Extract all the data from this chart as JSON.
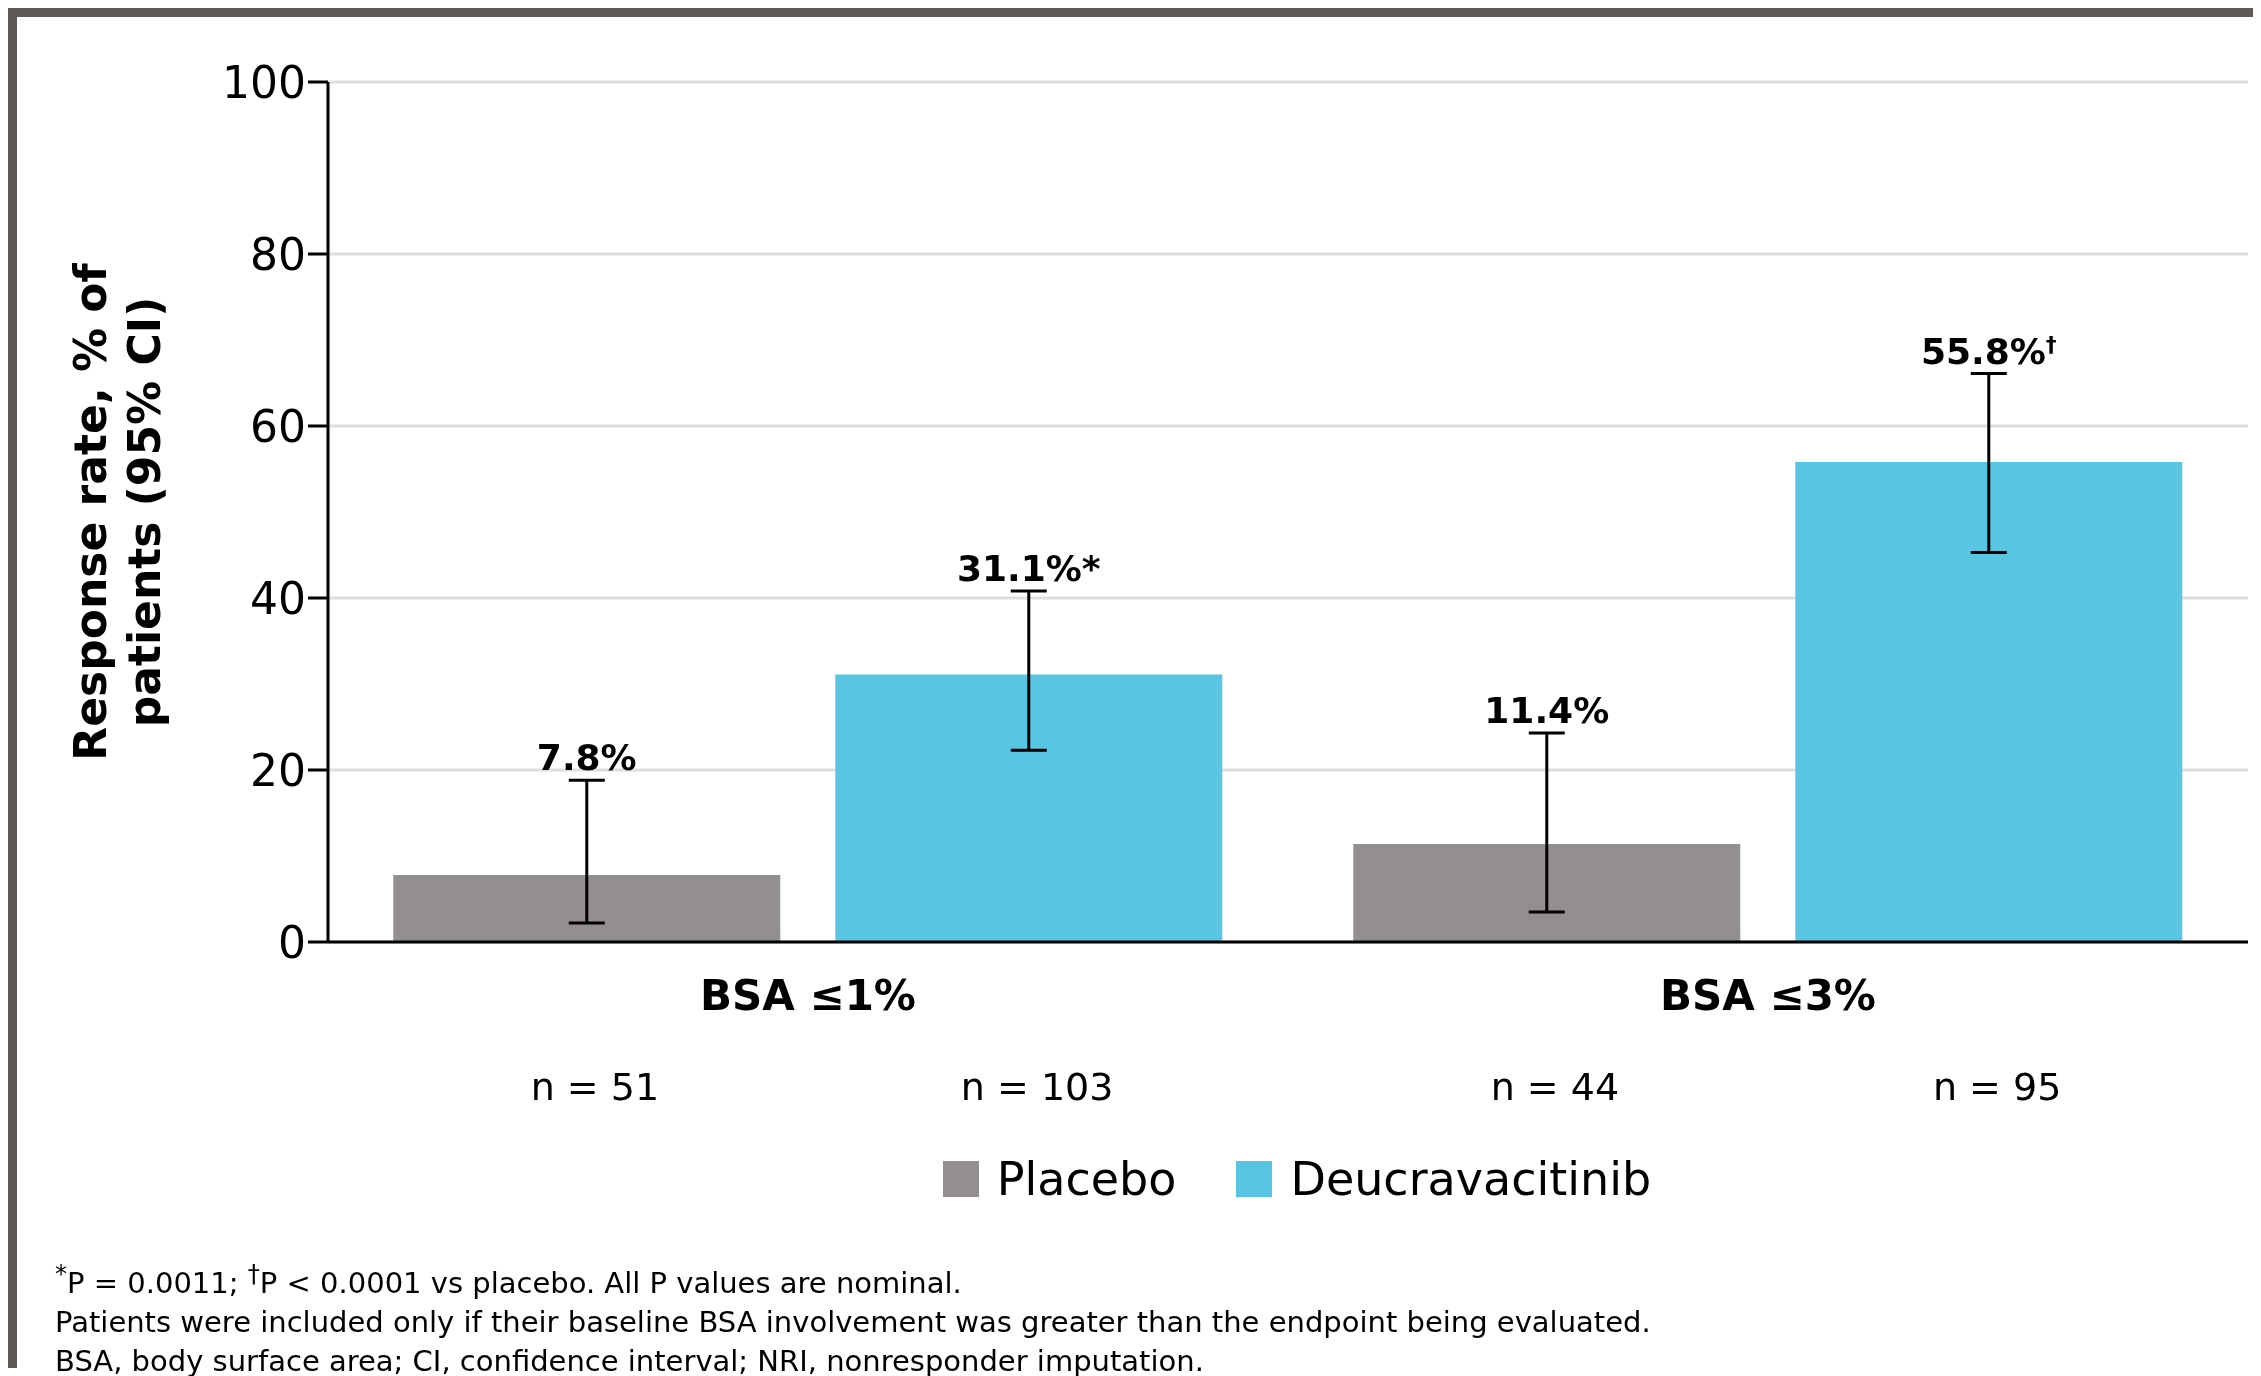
{
  "chart_data": {
    "type": "bar",
    "ylabel": "Response rate, % of patients (95% CI)",
    "categories": [
      "BSA ≤1%",
      "BSA ≤3%"
    ],
    "series": [
      {
        "name": "Placebo",
        "color": "#938f8e",
        "values": [
          7.8,
          11.4
        ],
        "errors": [
          [
            2.2,
            18.8
          ],
          [
            3.5,
            24.3
          ]
        ],
        "value_labels": [
          "7.8%",
          "11.4%"
        ]
      },
      {
        "name": "Deucravacitinib",
        "color": "#58c6e2",
        "values": [
          31.1,
          55.8
        ],
        "errors": [
          [
            22.3,
            40.8
          ],
          [
            45.3,
            66.1
          ]
        ],
        "value_labels": [
          "31.1%*",
          "55.8%$^{†}$"
        ]
      }
    ],
    "ylim": [
      0,
      100
    ],
    "yticks": [
      0,
      20,
      40,
      60,
      80,
      100
    ],
    "grid": "y",
    "legend": "bottom",
    "annotations": [
      "n = 51",
      "n = 103",
      "n = 44",
      "n = 95",
      "$^{*}$P = 0.0011; $^{†}$P < 0.0001 vs placebo. All P values are nominal.",
      "Patients were included only if their baseline BSA involvement was greater than the endpoint being evaluated.",
      "BSA, body surface area; CI, confidence interval; NRI, nonresponder imputation."
    ]
  }
}
